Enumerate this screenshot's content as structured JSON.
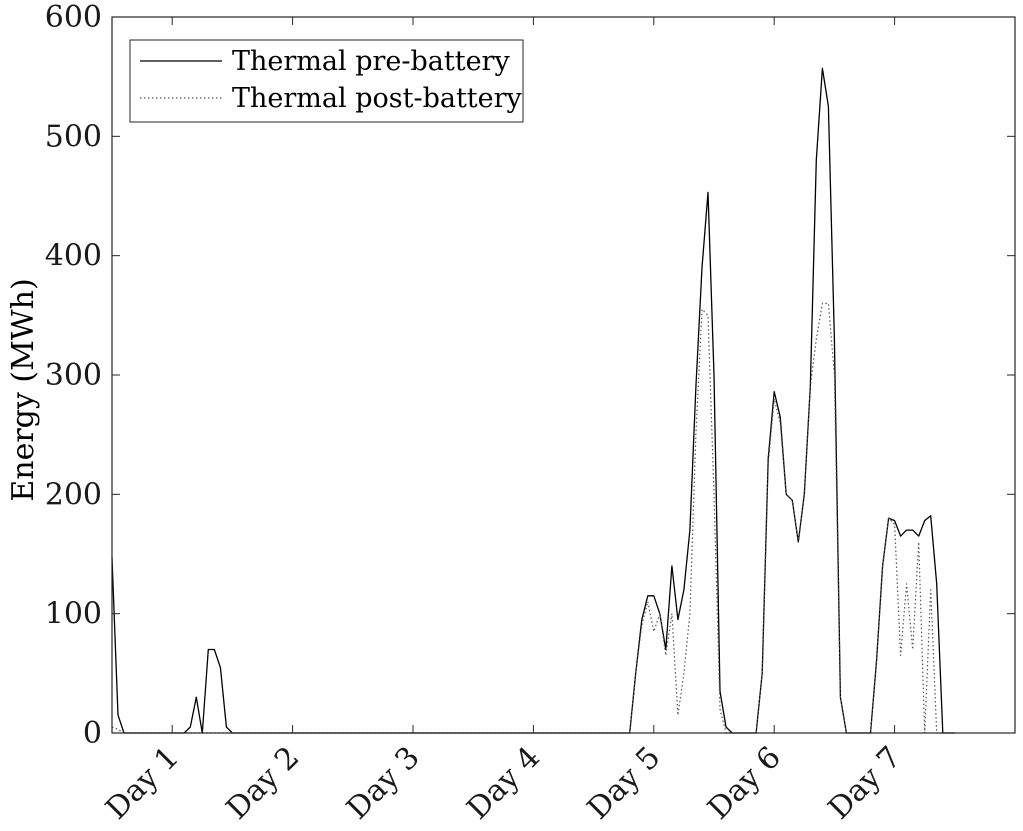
{
  "chart_data": {
    "type": "line",
    "title": "",
    "xlabel": "",
    "ylabel": "Energy (MWh)",
    "ylim": [
      0,
      600
    ],
    "yticks": [
      0,
      100,
      200,
      300,
      400,
      500,
      600
    ],
    "xlim": [
      0,
      7.5
    ],
    "xticks": [
      {
        "value": 0.5,
        "label": "Day 1"
      },
      {
        "value": 1.5,
        "label": "Day 2"
      },
      {
        "value": 2.5,
        "label": "Day 3"
      },
      {
        "value": 3.5,
        "label": "Day 4"
      },
      {
        "value": 4.5,
        "label": "Day 5"
      },
      {
        "value": 5.5,
        "label": "Day 6"
      },
      {
        "value": 6.5,
        "label": "Day 7"
      }
    ],
    "grid": false,
    "legend_position": "top-left",
    "series": [
      {
        "name": "Thermal pre-battery",
        "style": "solid",
        "color": "#000000",
        "x": [
          0,
          0.05,
          0.1,
          0.15,
          0.6,
          0.65,
          0.7,
          0.75,
          0.8,
          0.85,
          0.9,
          0.95,
          1.0,
          1.05,
          1.1,
          4.3,
          4.35,
          4.4,
          4.45,
          4.5,
          4.55,
          4.6,
          4.65,
          4.7,
          4.75,
          4.8,
          4.85,
          4.9,
          4.95,
          5.0,
          5.05,
          5.1,
          5.15,
          5.2,
          5.25,
          5.3,
          5.35,
          5.4,
          5.45,
          5.5,
          5.55,
          5.6,
          5.65,
          5.7,
          5.75,
          5.8,
          5.85,
          5.9,
          5.95,
          6.0,
          6.05,
          6.1,
          6.15,
          6.3,
          6.35,
          6.4,
          6.45,
          6.5,
          6.55,
          6.6,
          6.65,
          6.7,
          6.75,
          6.8,
          6.85,
          6.9,
          6.95,
          7.0
        ],
        "values": [
          147,
          15,
          0,
          0,
          0,
          5,
          30,
          0,
          70,
          70,
          55,
          5,
          0,
          0,
          0,
          0,
          50,
          95,
          115,
          115,
          100,
          70,
          140,
          95,
          120,
          170,
          290,
          390,
          453,
          300,
          35,
          5,
          0,
          0,
          0,
          0,
          0,
          50,
          230,
          286,
          265,
          200,
          195,
          160,
          200,
          290,
          480,
          557,
          525,
          330,
          30,
          0,
          0,
          0,
          60,
          140,
          180,
          178,
          165,
          170,
          170,
          165,
          178,
          182,
          125,
          0,
          0,
          0
        ]
      },
      {
        "name": "Thermal post-battery",
        "style": "dotted",
        "color": "#555555",
        "x": [
          0,
          0.05,
          0.1,
          0.15,
          0.6,
          0.65,
          0.7,
          0.75,
          0.8,
          0.85,
          0.9,
          0.95,
          1.0,
          1.05,
          1.1,
          4.3,
          4.35,
          4.4,
          4.45,
          4.5,
          4.55,
          4.6,
          4.65,
          4.7,
          4.75,
          4.8,
          4.85,
          4.9,
          4.95,
          5.0,
          5.05,
          5.1,
          5.15,
          5.2,
          5.25,
          5.3,
          5.35,
          5.4,
          5.45,
          5.5,
          5.55,
          5.6,
          5.65,
          5.7,
          5.75,
          5.8,
          5.85,
          5.9,
          5.95,
          6.0,
          6.05,
          6.1,
          6.15,
          6.3,
          6.35,
          6.4,
          6.45,
          6.5,
          6.55,
          6.6,
          6.65,
          6.7,
          6.75,
          6.8,
          6.85,
          6.9,
          6.95,
          7.0
        ],
        "values": [
          5,
          3,
          0,
          0,
          0,
          0,
          0,
          0,
          0,
          0,
          0,
          0,
          0,
          0,
          0,
          0,
          50,
          90,
          110,
          85,
          100,
          65,
          100,
          15,
          50,
          100,
          250,
          355,
          350,
          200,
          20,
          0,
          0,
          0,
          0,
          0,
          0,
          50,
          225,
          280,
          260,
          200,
          195,
          160,
          200,
          290,
          330,
          360,
          360,
          300,
          30,
          0,
          0,
          0,
          60,
          140,
          180,
          175,
          65,
          125,
          70,
          160,
          0,
          120,
          0,
          0,
          0,
          0
        ]
      }
    ]
  }
}
